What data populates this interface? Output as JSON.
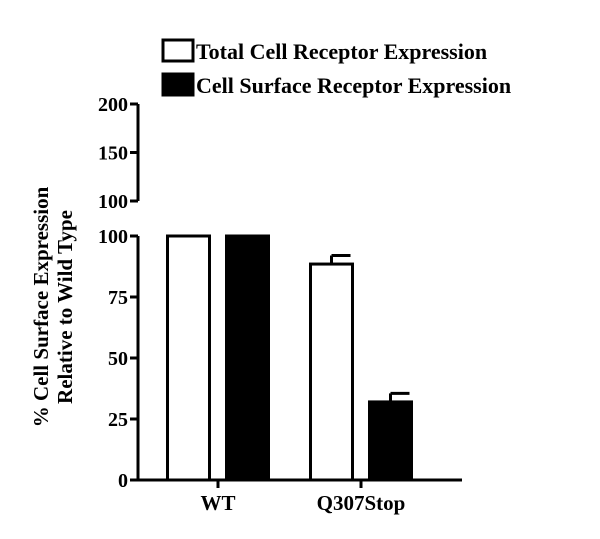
{
  "chart_data": {
    "type": "bar",
    "title": "",
    "xlabel": "",
    "ylabel_line1": "% Cell Surface Expression",
    "ylabel_line2": "Relative to Wild Type",
    "categories": [
      "WT",
      "Q307Stop"
    ],
    "series": [
      {
        "name": "Total Cell Receptor Expression",
        "fill": "#ffffff",
        "values": [
          100,
          88.5
        ],
        "error": [
          0,
          3.5
        ]
      },
      {
        "name": "Cell Surface Receptor Expression",
        "fill": "#000000",
        "values": [
          100,
          32
        ],
        "error": [
          0,
          3.5
        ]
      }
    ],
    "axis_break": true,
    "lower_ylim": [
      0,
      100
    ],
    "lower_ticks": [
      "0",
      "25",
      "50",
      "75",
      "100"
    ],
    "upper_ylim": [
      100,
      200
    ],
    "upper_ticks": [
      "100",
      "150",
      "200"
    ],
    "legend_position": "top",
    "grid": false
  }
}
